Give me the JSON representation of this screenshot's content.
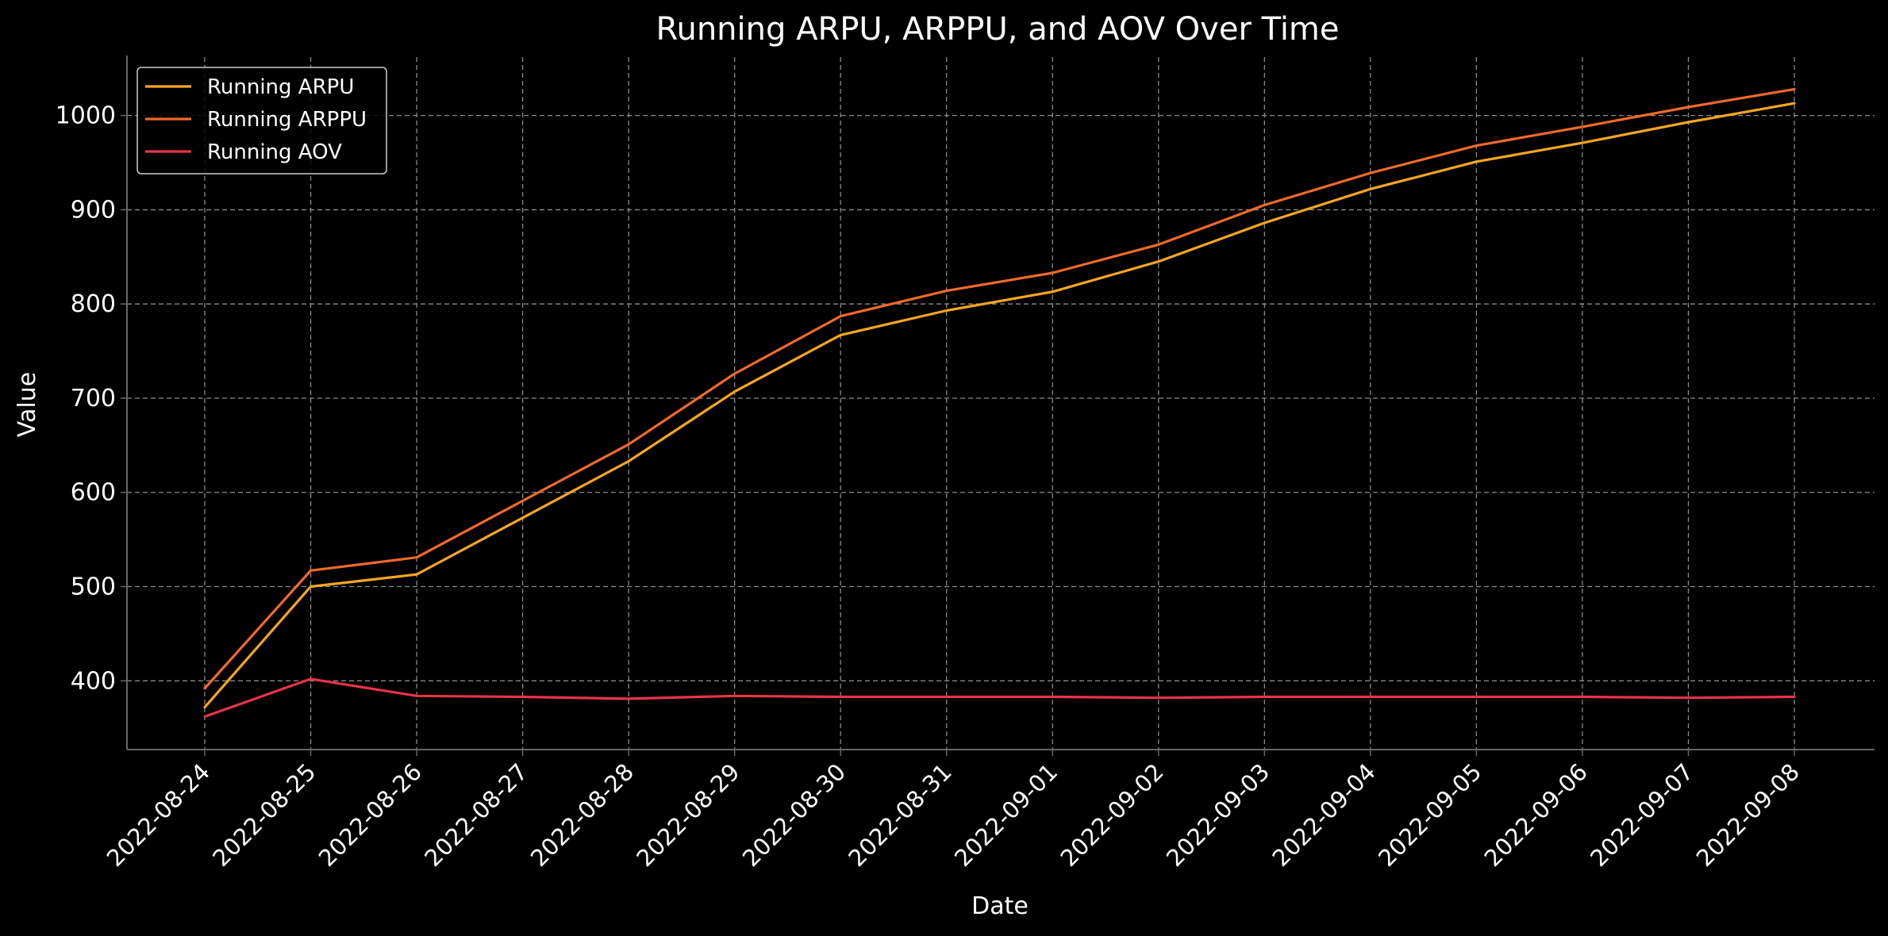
{
  "chart_data": {
    "type": "line",
    "title": "Running ARPU, ARPPU, and AOV Over Time",
    "xlabel": "Date",
    "ylabel": "Value",
    "x": [
      "2022-08-24",
      "2022-08-25",
      "2022-08-26",
      "2022-08-27",
      "2022-08-28",
      "2022-08-29",
      "2022-08-30",
      "2022-08-31",
      "2022-09-01",
      "2022-09-02",
      "2022-09-03",
      "2022-09-04",
      "2022-09-05",
      "2022-09-06",
      "2022-09-07",
      "2022-09-08"
    ],
    "ylim": [
      327,
      1062
    ],
    "yticks": [
      400,
      500,
      600,
      700,
      800,
      900,
      1000
    ],
    "grid": true,
    "legend_position": "top-left",
    "series": [
      {
        "name": "Running ARPU",
        "color": "#f5a623",
        "values": [
          372,
          500,
          513,
          573,
          633,
          707,
          767,
          793,
          813,
          845,
          886,
          922,
          951,
          971,
          993,
          1013
        ]
      },
      {
        "name": "Running ARPPU",
        "color": "#f06a2a",
        "values": [
          392,
          517,
          531,
          591,
          651,
          726,
          787,
          814,
          833,
          863,
          905,
          939,
          968,
          988,
          1009,
          1028
        ]
      },
      {
        "name": "Running AOV",
        "color": "#e8334a",
        "values": [
          362,
          402,
          384,
          383,
          381,
          384,
          383,
          383,
          383,
          382,
          383,
          383,
          383,
          383,
          382,
          383
        ]
      }
    ]
  },
  "colors": {
    "background": "#000000",
    "grid": "#8a8a8a",
    "axis": "#666666",
    "text": "#ffffff"
  }
}
